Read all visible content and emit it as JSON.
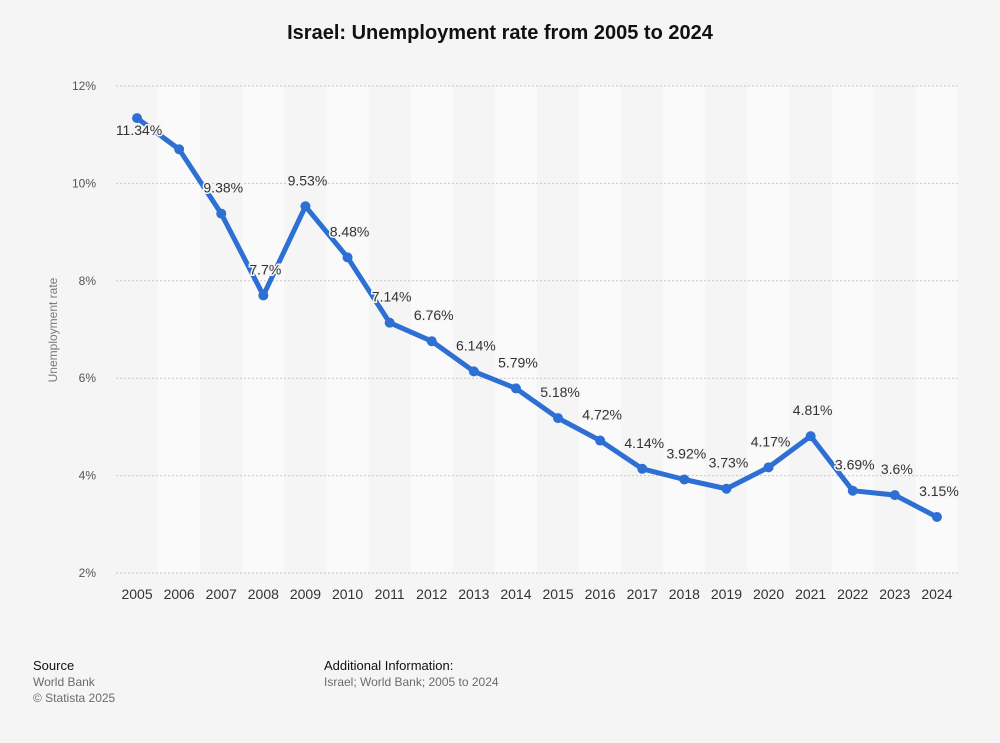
{
  "title": "Israel: Unemployment rate from 2005 to 2024",
  "chart_data": {
    "type": "line",
    "title": "Israel: Unemployment rate from 2005 to 2024",
    "xlabel": "",
    "ylabel": "Unemployment rate",
    "categories": [
      "2005",
      "2006",
      "2007",
      "2008",
      "2009",
      "2010",
      "2011",
      "2012",
      "2013",
      "2014",
      "2015",
      "2016",
      "2017",
      "2018",
      "2019",
      "2020",
      "2021",
      "2022",
      "2023",
      "2024"
    ],
    "values": [
      11.34,
      10.7,
      9.38,
      7.7,
      9.53,
      8.48,
      7.14,
      6.76,
      6.14,
      5.79,
      5.18,
      4.72,
      4.14,
      3.92,
      3.73,
      4.17,
      4.81,
      3.69,
      3.6,
      3.15
    ],
    "labels": [
      "11.34%",
      "",
      "9.38%",
      "7.7%",
      "9.53%",
      "8.48%",
      "7.14%",
      "6.76%",
      "6.14%",
      "5.79%",
      "5.18%",
      "4.72%",
      "4.14%",
      "3.92%",
      "3.73%",
      "4.17%",
      "4.81%",
      "3.69%",
      "3.6%",
      "3.15%"
    ],
    "ylim": [
      2,
      12
    ],
    "yticks": [
      2,
      4,
      6,
      8,
      10,
      12
    ],
    "ytick_labels": [
      "2%",
      "4%",
      "6%",
      "8%",
      "10%",
      "12%"
    ],
    "grid": true,
    "legend": "none",
    "line_color": "#2e6fd4"
  },
  "footer": {
    "source_heading": "Source",
    "source_text": "World Bank",
    "copyright": "© Statista 2025",
    "info_heading": "Additional Information:",
    "info_text": "Israel; World Bank; 2005 to 2024"
  }
}
